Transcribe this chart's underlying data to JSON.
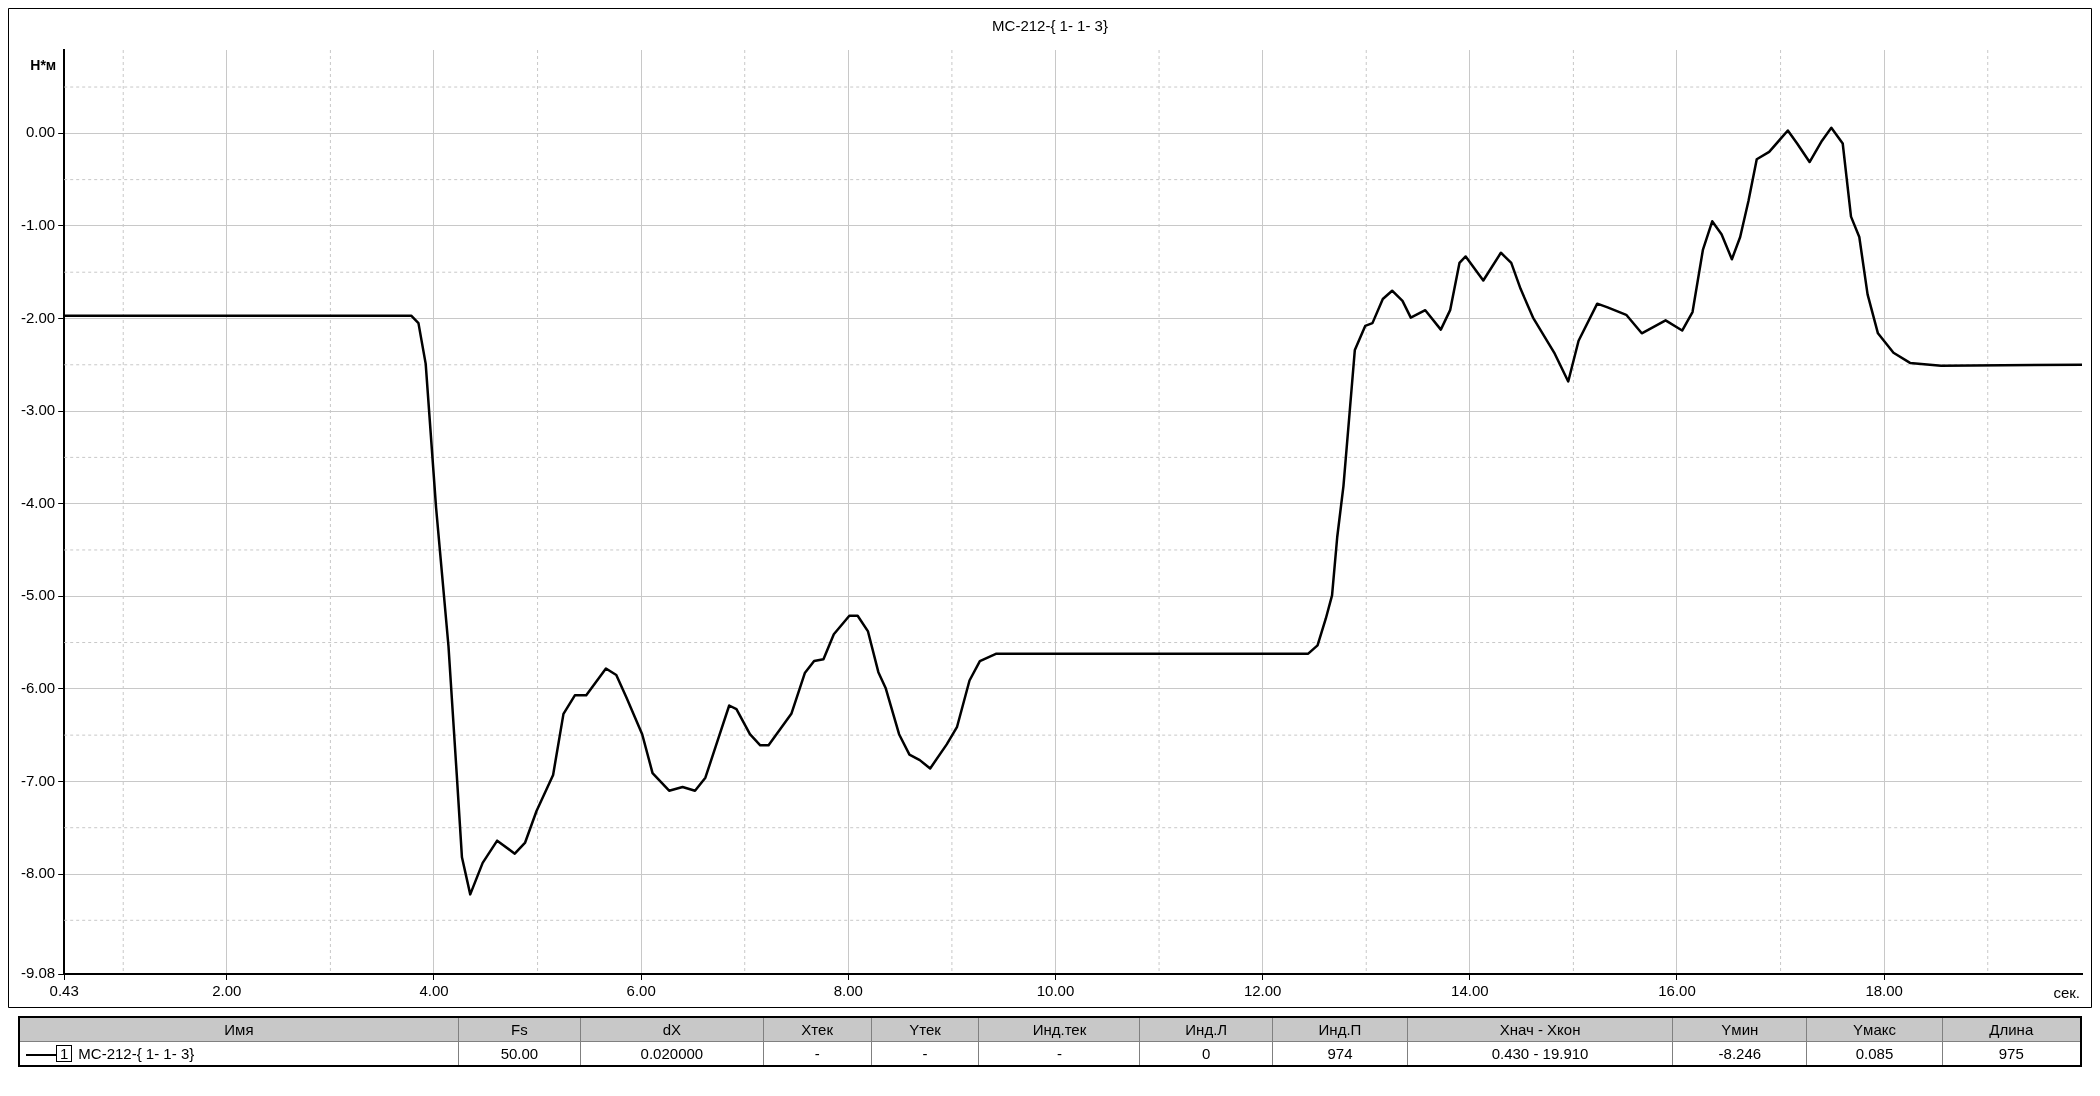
{
  "chart_data": {
    "type": "line",
    "title": "МС-212-{ 1- 1- 3}",
    "xlabel": "сек.",
    "ylabel": "Н*м",
    "xlim": [
      0.43,
      19.91
    ],
    "ylim": [
      -9.08,
      0.9
    ],
    "xticks": [
      {
        "value": 0.43,
        "label": "0.43"
      },
      {
        "value": 2,
        "label": "2.00"
      },
      {
        "value": 4,
        "label": "4.00"
      },
      {
        "value": 6,
        "label": "6.00"
      },
      {
        "value": 8,
        "label": "8.00"
      },
      {
        "value": 10,
        "label": "10.00"
      },
      {
        "value": 12,
        "label": "12.00"
      },
      {
        "value": 14,
        "label": "14.00"
      },
      {
        "value": 16,
        "label": "16.00"
      },
      {
        "value": 18,
        "label": "18.00"
      }
    ],
    "yticks": [
      {
        "value": -9.08,
        "label": "-9.08"
      },
      {
        "value": -8,
        "label": "-8.00"
      },
      {
        "value": -7,
        "label": "-7.00"
      },
      {
        "value": -6,
        "label": "-6.00"
      },
      {
        "value": -5,
        "label": "-5.00"
      },
      {
        "value": -4,
        "label": "-4.00"
      },
      {
        "value": -3,
        "label": "-3.00"
      },
      {
        "value": -2,
        "label": "-2.00"
      },
      {
        "value": -1,
        "label": "-1.00"
      },
      {
        "value": 0,
        "label": "0.00"
      }
    ],
    "grid": true,
    "legend": "bottom",
    "annotations": [
      "Имя",
      "Fs",
      "dX",
      "Xтек",
      "Yтек",
      "Инд.тек",
      "Инд.Л",
      "Инд.П",
      "Xнач - Xкон",
      "Yмин",
      "Yмакс",
      "Длина",
      "1",
      "50.00",
      "0.020000",
      "-",
      "-",
      "-",
      "0",
      "974",
      "0.430 - 19.910",
      "-8.246",
      "0.085",
      "975"
    ],
    "series": [
      {
        "name": "МС-212-{ 1- 1- 3}",
        "color": "#000000",
        "x": [
          0.43,
          3.78,
          3.85,
          3.92,
          4.02,
          4.14,
          4.22,
          4.27,
          4.35,
          4.47,
          4.61,
          4.78,
          4.88,
          4.99,
          5.15,
          5.25,
          5.36,
          5.47,
          5.66,
          5.76,
          5.86,
          6.01,
          6.11,
          6.27,
          6.4,
          6.52,
          6.62,
          6.75,
          6.85,
          6.92,
          7.05,
          7.15,
          7.23,
          7.45,
          7.58,
          7.67,
          7.76,
          7.86,
          8.01,
          8.09,
          8.19,
          8.29,
          8.36,
          8.49,
          8.59,
          8.69,
          8.79,
          8.95,
          9.05,
          9.17,
          9.27,
          9.43,
          12.44,
          12.53,
          12.61,
          12.67,
          12.72,
          12.78,
          12.84,
          12.89,
          12.99,
          13.06,
          13.16,
          13.25,
          13.35,
          13.43,
          13.57,
          13.72,
          13.81,
          13.9,
          13.96,
          14.13,
          14.3,
          14.4,
          14.49,
          14.61,
          14.82,
          14.95,
          15.05,
          15.23,
          15.33,
          15.51,
          15.66,
          15.89,
          16.05,
          16.15,
          16.25,
          16.34,
          16.43,
          16.53,
          16.61,
          16.69,
          16.77,
          16.89,
          17.07,
          17.16,
          17.28,
          17.4,
          17.49,
          17.6,
          17.68,
          17.76,
          17.84,
          17.94,
          18.09,
          18.25,
          18.55,
          19.91
        ],
        "values": [
          -1.97,
          -1.97,
          -2.05,
          -2.49,
          -4.04,
          -5.54,
          -6.93,
          -7.82,
          -8.22,
          -7.88,
          -7.64,
          -7.78,
          -7.66,
          -7.32,
          -6.93,
          -6.27,
          -6.07,
          -6.07,
          -5.78,
          -5.85,
          -6.1,
          -6.49,
          -6.91,
          -7.1,
          -7.06,
          -7.1,
          -6.96,
          -6.52,
          -6.18,
          -6.22,
          -6.49,
          -6.61,
          -6.61,
          -6.27,
          -5.83,
          -5.7,
          -5.68,
          -5.41,
          -5.21,
          -5.21,
          -5.38,
          -5.82,
          -5.99,
          -6.49,
          -6.71,
          -6.77,
          -6.86,
          -6.6,
          -6.41,
          -5.91,
          -5.7,
          -5.62,
          -5.62,
          -5.53,
          -5.24,
          -4.99,
          -4.36,
          -3.81,
          -3.01,
          -2.34,
          -2.08,
          -2.05,
          -1.79,
          -1.7,
          -1.81,
          -1.99,
          -1.91,
          -2.12,
          -1.91,
          -1.4,
          -1.33,
          -1.59,
          -1.29,
          -1.4,
          -1.68,
          -1.99,
          -2.38,
          -2.68,
          -2.24,
          -1.84,
          -1.88,
          -1.96,
          -2.16,
          -2.02,
          -2.13,
          -1.93,
          -1.26,
          -0.95,
          -1.09,
          -1.36,
          -1.12,
          -0.73,
          -0.28,
          -0.2,
          0.03,
          -0.11,
          -0.31,
          -0.08,
          0.06,
          -0.11,
          -0.9,
          -1.12,
          -1.74,
          -2.16,
          -2.37,
          -2.48,
          -2.51,
          -2.5
        ]
      }
    ]
  }
}
